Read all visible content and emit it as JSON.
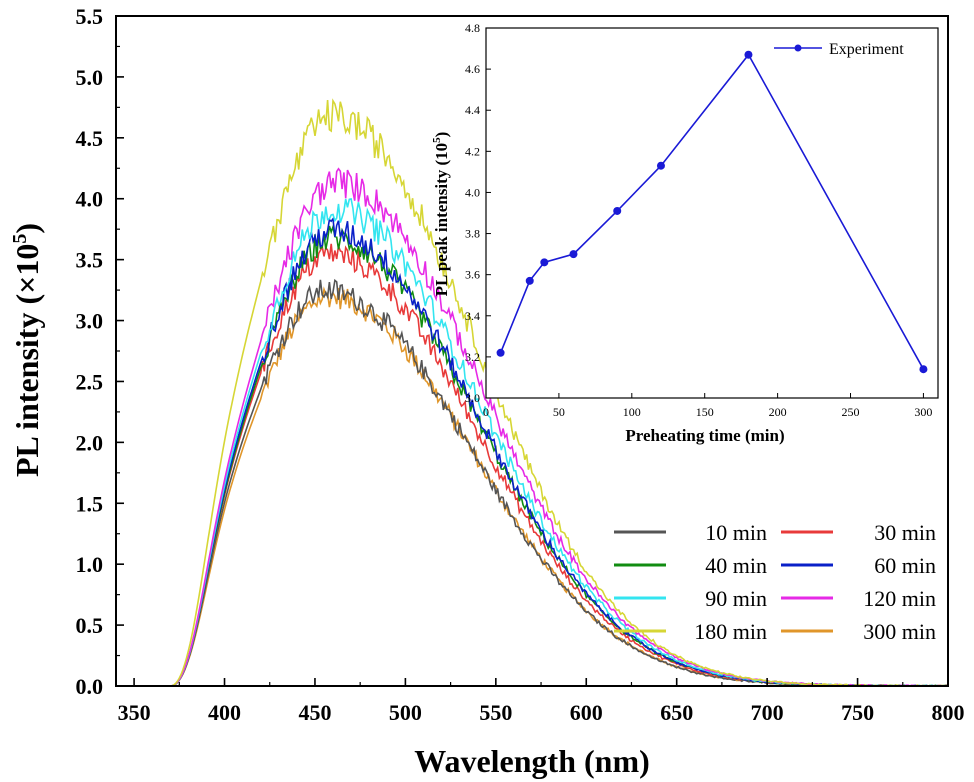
{
  "chart_data": [
    {
      "type": "line",
      "title": "",
      "xlabel": "Wavelength (nm)",
      "ylabel_main": "PL intensity (×10",
      "ylabel_sup": "5",
      "ylabel_end": ")",
      "xlim": [
        340,
        800
      ],
      "ylim": [
        0,
        5.5
      ],
      "xticks": [
        350,
        400,
        450,
        500,
        550,
        600,
        650,
        700,
        750,
        800
      ],
      "yticks": [
        0.0,
        0.5,
        1.0,
        1.5,
        2.0,
        2.5,
        3.0,
        3.5,
        4.0,
        4.5,
        5.0,
        5.5
      ],
      "ytick_labels": [
        "0.0",
        "0.5",
        "1.0",
        "1.5",
        "2.0",
        "2.5",
        "3.0",
        "3.5",
        "4.0",
        "4.5",
        "5.0",
        "5.5"
      ],
      "legend_position": "bottom-right",
      "series": [
        {
          "name": "10 min",
          "color": "#555555",
          "peak_nm": 458,
          "peak": 3.25
        },
        {
          "name": "30 min",
          "color": "#e83a3a",
          "peak_nm": 460,
          "peak": 3.55
        },
        {
          "name": "40 min",
          "color": "#118c11",
          "peak_nm": 461,
          "peak": 3.68
        },
        {
          "name": "60 min",
          "color": "#0a20c8",
          "peak_nm": 461,
          "peak": 3.74
        },
        {
          "name": "90 min",
          "color": "#33e5f0",
          "peak_nm": 462,
          "peak": 3.92
        },
        {
          "name": "120 min",
          "color": "#e62ae6",
          "peak_nm": 463,
          "peak": 4.14
        },
        {
          "name": "180 min",
          "color": "#d6d635",
          "peak_nm": 461,
          "peak": 4.68
        },
        {
          "name": "300 min",
          "color": "#e0962a",
          "peak_nm": 459,
          "peak": 3.2
        }
      ]
    },
    {
      "type": "line",
      "title": "",
      "xlabel": "Preheating time (min)",
      "ylabel_main": "PL peak intensity (10",
      "ylabel_sup": "5",
      "ylabel_end": ")",
      "xlim": [
        0,
        310
      ],
      "ylim": [
        3.0,
        4.8
      ],
      "xticks": [
        0,
        50,
        100,
        150,
        200,
        250,
        300
      ],
      "yticks": [
        3.0,
        3.2,
        3.4,
        3.6,
        3.8,
        4.0,
        4.2,
        4.4,
        4.6,
        4.8
      ],
      "ytick_labels": [
        "3.0",
        "3.2",
        "3.4",
        "3.6",
        "3.8",
        "4.0",
        "4.2",
        "4.4",
        "4.6",
        "4.8"
      ],
      "legend_position": "top-right",
      "series": [
        {
          "name": "Experiment",
          "color": "#1a1ad6",
          "x": [
            10,
            30,
            40,
            60,
            90,
            120,
            180,
            300
          ],
          "y": [
            3.22,
            3.57,
            3.66,
            3.7,
            3.91,
            4.13,
            4.67,
            3.14
          ]
        }
      ]
    }
  ]
}
